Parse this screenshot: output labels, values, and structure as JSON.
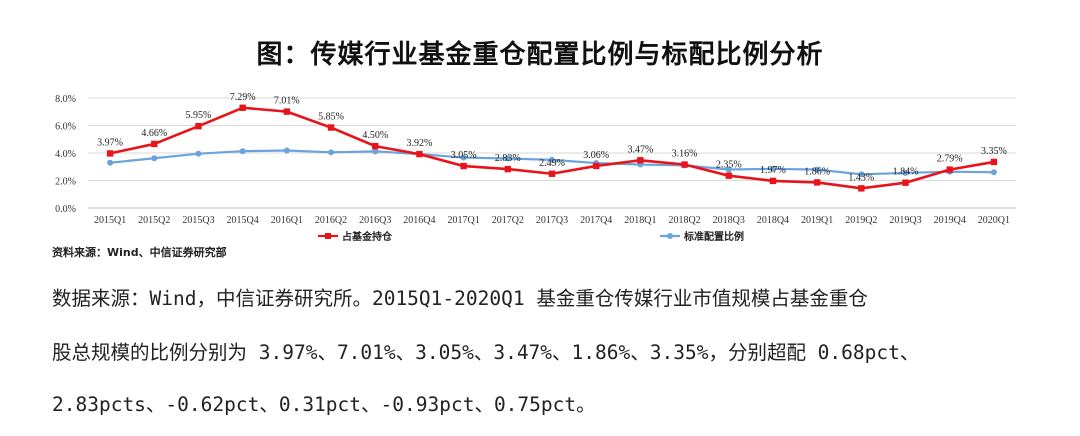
{
  "title": "图：传媒行业基金重仓配置比例与标配比例分析",
  "source_note": "资料来源：Wind、中信证券研究部",
  "paragraph": [
    "数据来源：Wind，中信证券研究所。2015Q1-2020Q1 基金重仓传媒行业市值规模占基金重仓",
    "股总规模的比例分别为 3.97%、7.01%、3.05%、3.47%、1.86%、3.35%，分别超配 0.68pct、",
    "2.83pcts、-0.62pct、0.31pct、-0.93pct、0.75pct。"
  ],
  "colors": {
    "heavy": "#e8141b",
    "standard": "#6ba3dd",
    "grid": "#d9d9d9"
  },
  "chart_data": {
    "type": "line",
    "categories": [
      "2015Q1",
      "2015Q2",
      "2015Q3",
      "2015Q4",
      "2016Q1",
      "2016Q2",
      "2016Q3",
      "2016Q4",
      "2017Q1",
      "2017Q2",
      "2017Q3",
      "2017Q4",
      "2018Q1",
      "2018Q2",
      "2018Q3",
      "2018Q4",
      "2019Q1",
      "2019Q2",
      "2019Q3",
      "2019Q4",
      "2020Q1"
    ],
    "y_ticks": [
      "0.0%",
      "2.0%",
      "4.0%",
      "6.0%",
      "8.0%"
    ],
    "ylim": [
      0,
      8
    ],
    "grid": true,
    "legend_position": "bottom",
    "series": [
      {
        "name": "占基金持仓",
        "color": "#e8141b",
        "marker": "square",
        "values": [
          3.97,
          4.66,
          5.95,
          7.29,
          7.01,
          5.85,
          4.5,
          3.92,
          3.05,
          2.83,
          2.49,
          3.06,
          3.47,
          3.16,
          2.35,
          1.97,
          1.86,
          1.43,
          1.84,
          2.79,
          3.35
        ],
        "labels": [
          "3.97%",
          "4.66%",
          "5.95%",
          "7.29%",
          "7.01%",
          "5.85%",
          "4.50%",
          "3.92%",
          "3.05%",
          "2.83%",
          "2.49%",
          "3.06%",
          "3.47%",
          "3.16%",
          "2.35%",
          "1.97%",
          "1.86%",
          "1.43%",
          "1.84%",
          "2.79%",
          "3.35%"
        ]
      },
      {
        "name": "标准配置比例",
        "color": "#6ba3dd",
        "marker": "circle",
        "values": [
          3.29,
          3.62,
          3.95,
          4.13,
          4.18,
          4.05,
          4.12,
          3.92,
          3.67,
          3.6,
          3.5,
          3.27,
          3.16,
          3.1,
          2.8,
          2.85,
          2.79,
          2.45,
          2.55,
          2.64,
          2.6
        ]
      }
    ]
  }
}
